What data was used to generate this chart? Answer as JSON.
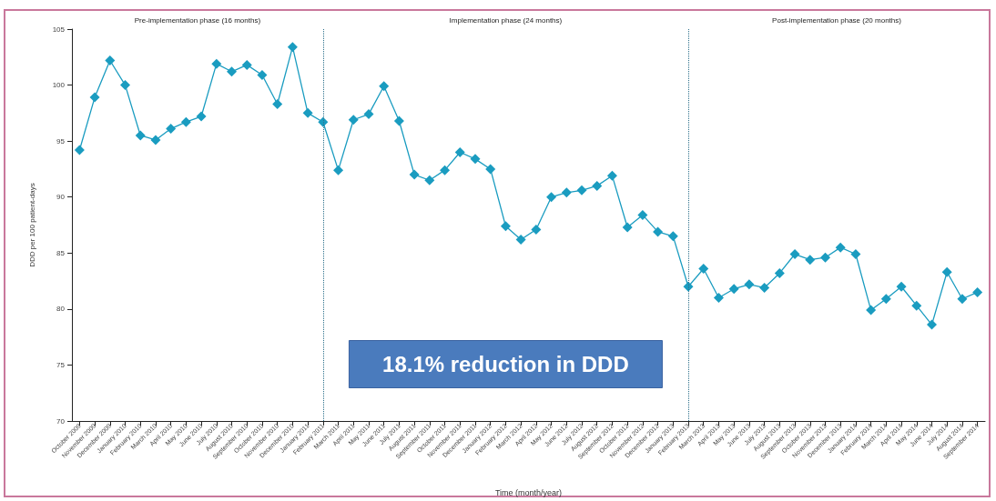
{
  "chart_data": {
    "type": "line",
    "xlabel": "Time (month/year)",
    "ylabel": "DDD per 100 patient-days",
    "categories": [
      "October 2009",
      "November 2009",
      "December 2009",
      "January 2010",
      "February 2010",
      "March 2010",
      "April 2010",
      "May 2010",
      "June 2010",
      "July 2010",
      "August 2010",
      "September 2010",
      "October 2010",
      "November 2010",
      "December 2010",
      "January 2011",
      "February 2011",
      "March 2011",
      "April 2011",
      "May 2011",
      "June 2011",
      "July 2011",
      "August 2011",
      "September 2011",
      "October 2011",
      "November 2011",
      "December 2011",
      "January 2012",
      "February 2012",
      "March 2012",
      "April 2012",
      "May 2012",
      "June 2012",
      "July 2012",
      "August 2012",
      "September 2012",
      "October 2012",
      "November 2012",
      "December 2012",
      "January 2013",
      "February 2013",
      "March 2013",
      "April 2013",
      "May 2013",
      "June 2013",
      "July 2013",
      "August 2013",
      "September 2013",
      "October 2013",
      "November 2013",
      "December 2013",
      "January 2014",
      "February 2014",
      "March 2014",
      "April 2014",
      "May 2014",
      "June 2014",
      "July 2014",
      "August 2014",
      "September 2014"
    ],
    "series": [
      {
        "color": "#1a9cc0",
        "values": [
          94.2,
          98.9,
          102.2,
          100,
          95.5,
          95.1,
          96.1,
          96.7,
          97.2,
          101.9,
          101.2,
          101.8,
          100.9,
          98.3,
          103.4,
          97.5,
          96.7,
          92.4,
          96.9,
          97.4,
          99.9,
          96.8,
          92,
          91.5,
          92.4,
          94,
          93.4,
          92.5,
          87.4,
          86.2,
          87.1,
          90,
          90.4,
          90.6,
          91,
          91.9,
          87.3,
          88.4,
          86.9,
          86.5,
          82,
          83.6,
          81,
          81.8,
          82.2,
          81.9,
          83.2,
          84.9,
          84.4,
          84.6,
          85.5,
          84.9,
          79.9,
          80.9,
          82,
          80.3,
          78.6,
          83.3,
          80.9,
          81.5
        ]
      }
    ],
    "ylim": [
      70,
      105
    ],
    "yticks": [
      70,
      75,
      80,
      85,
      90,
      95,
      100,
      105
    ],
    "grid": false,
    "marker": "diamond",
    "line_style": "solid",
    "ref_lines": [
      {
        "axis": "x",
        "value": "February 2011",
        "color": "#2b6f8a",
        "line_style": "dotted"
      },
      {
        "axis": "x",
        "value": "February 2013",
        "color": "#2b6f8a",
        "line_style": "dotted"
      }
    ],
    "annotations": [
      "Pre-implementation phase (16 months)",
      "Implementation phase (24 months)",
      "Post-implementation phase (20 months)",
      "18.1% reduction in DDD"
    ]
  }
}
